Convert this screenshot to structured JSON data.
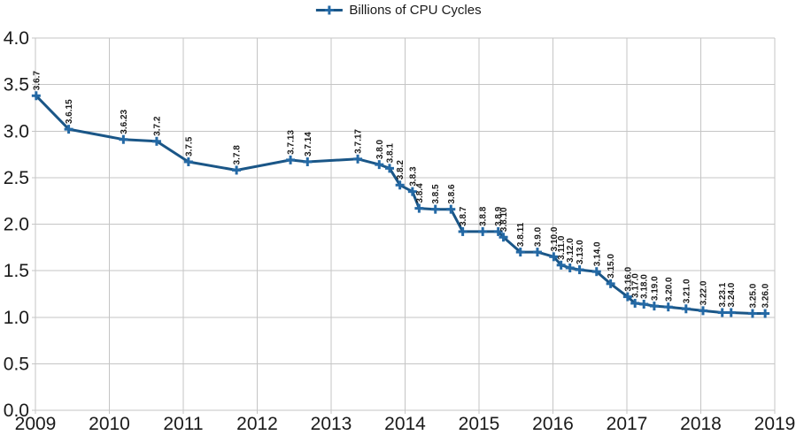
{
  "chart": {
    "legend_label": "Billions of CPU Cycles"
  },
  "chart_data": {
    "type": "line",
    "title": "",
    "xlabel": "",
    "ylabel": "",
    "legend": [
      "Billions of CPU Cycles"
    ],
    "legend_position": "top-center",
    "grid": true,
    "marker": "plus",
    "point_label_rotation_deg": 90,
    "xlim": [
      2009,
      2019
    ],
    "ylim": [
      0.0,
      4.0
    ],
    "x_ticks": [
      "2009",
      "2010",
      "2011",
      "2012",
      "2013",
      "2014",
      "2015",
      "2016",
      "2017",
      "2018",
      "2019"
    ],
    "y_ticks": [
      "4.0",
      "3.5",
      "3.0",
      "2.5",
      "2.0",
      "1.5",
      "1.0",
      "0.5",
      "0.0"
    ],
    "colors": {
      "line": "#1A5687",
      "marker": "#2469A5",
      "grid": "#C5C5C5",
      "axis_text": "#1A1A1A",
      "point_label_text": "#1A1A1A",
      "background": "#FFFFFF"
    },
    "series": [
      {
        "name": "Billions of CPU Cycles",
        "points": [
          {
            "label": "3.6.7",
            "x": 2009.01,
            "y": 3.38
          },
          {
            "label": "3.6.15",
            "x": 2009.45,
            "y": 3.02
          },
          {
            "label": "3.6.23",
            "x": 2010.19,
            "y": 2.91
          },
          {
            "label": "3.7.2",
            "x": 2010.64,
            "y": 2.89
          },
          {
            "label": "3.7.5",
            "x": 2011.07,
            "y": 2.67
          },
          {
            "label": "3.7.8",
            "x": 2011.72,
            "y": 2.58
          },
          {
            "label": "3.7.13",
            "x": 2012.45,
            "y": 2.69
          },
          {
            "label": "3.7.14",
            "x": 2012.68,
            "y": 2.67
          },
          {
            "label": "3.7.17",
            "x": 2013.36,
            "y": 2.7
          },
          {
            "label": "3.8.0",
            "x": 2013.65,
            "y": 2.64
          },
          {
            "label": "3.8.1",
            "x": 2013.79,
            "y": 2.6
          },
          {
            "label": "3.8.2",
            "x": 2013.93,
            "y": 2.42
          },
          {
            "label": "3.8.3",
            "x": 2014.1,
            "y": 2.35
          },
          {
            "label": "3.8.4",
            "x": 2014.19,
            "y": 2.17
          },
          {
            "label": "3.8.5",
            "x": 2014.41,
            "y": 2.16
          },
          {
            "label": "3.8.6",
            "x": 2014.62,
            "y": 2.16
          },
          {
            "label": "3.8.7",
            "x": 2014.78,
            "y": 1.92
          },
          {
            "label": "3.8.8",
            "x": 2015.05,
            "y": 1.92
          },
          {
            "label": "3.8.9",
            "x": 2015.26,
            "y": 1.92
          },
          {
            "label": "3.8.10",
            "x": 2015.33,
            "y": 1.86
          },
          {
            "label": "3.8.11",
            "x": 2015.56,
            "y": 1.7
          },
          {
            "label": "3.9.0",
            "x": 2015.79,
            "y": 1.7
          },
          {
            "label": "3.10.0",
            "x": 2016.01,
            "y": 1.65
          },
          {
            "label": "3.11.0",
            "x": 2016.11,
            "y": 1.56
          },
          {
            "label": "3.12.0",
            "x": 2016.23,
            "y": 1.53
          },
          {
            "label": "3.13.0",
            "x": 2016.36,
            "y": 1.51
          },
          {
            "label": "3.14.0",
            "x": 2016.59,
            "y": 1.49
          },
          {
            "label": "3.15.0",
            "x": 2016.78,
            "y": 1.36
          },
          {
            "label": "3.16.0",
            "x": 2017.01,
            "y": 1.22
          },
          {
            "label": "3.17.0",
            "x": 2017.11,
            "y": 1.15
          },
          {
            "label": "3.18.0",
            "x": 2017.23,
            "y": 1.14
          },
          {
            "label": "3.19.0",
            "x": 2017.37,
            "y": 1.12
          },
          {
            "label": "3.20.0",
            "x": 2017.56,
            "y": 1.11
          },
          {
            "label": "3.21.0",
            "x": 2017.8,
            "y": 1.09
          },
          {
            "label": "3.22.0",
            "x": 2018.03,
            "y": 1.07
          },
          {
            "label": "3.23.1",
            "x": 2018.29,
            "y": 1.05
          },
          {
            "label": "3.24.0",
            "x": 2018.41,
            "y": 1.05
          },
          {
            "label": "3.25.0",
            "x": 2018.7,
            "y": 1.04
          },
          {
            "label": "3.26.0",
            "x": 2018.87,
            "y": 1.04
          }
        ]
      }
    ]
  }
}
